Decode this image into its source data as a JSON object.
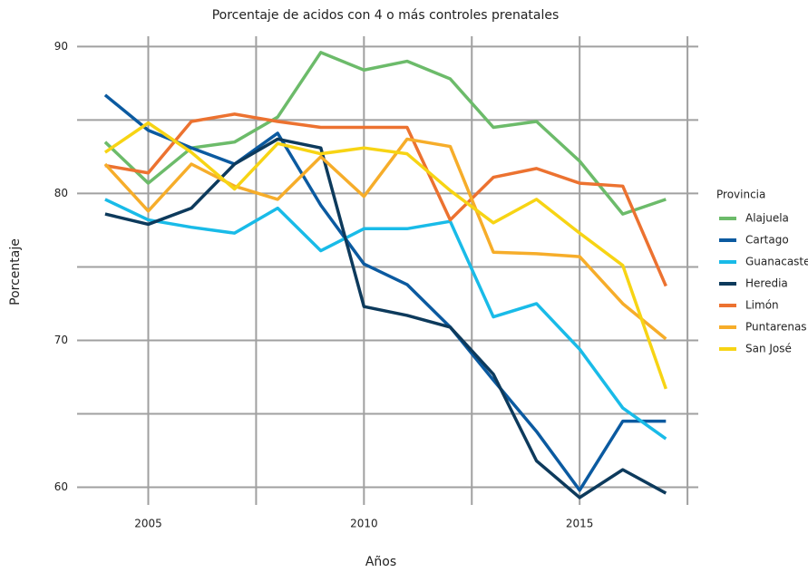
{
  "chart_data": {
    "type": "line",
    "title": "Porcentaje de acidos con 4 o más controles prenatales",
    "x_label": "Años",
    "y_label": "Porcentaje",
    "legend_title": "Provincia",
    "x": [
      2004,
      2005,
      2006,
      2007,
      2008,
      2009,
      2010,
      2011,
      2012,
      2013,
      2014,
      2015,
      2016,
      2017
    ],
    "series": [
      {
        "name": "Alajuela",
        "color": "#6cbb6a",
        "values": [
          83.5,
          80.7,
          83.1,
          83.5,
          85.2,
          89.6,
          88.4,
          89.0,
          87.8,
          84.5,
          84.9,
          82.2,
          78.6,
          79.6
        ]
      },
      {
        "name": "Cartago",
        "color": "#0b5aa0",
        "values": [
          86.7,
          84.3,
          83.1,
          82.0,
          84.1,
          79.2,
          75.2,
          73.8,
          70.9,
          67.3,
          63.8,
          59.8,
          64.5,
          64.5
        ]
      },
      {
        "name": "Guanacaste",
        "color": "#19bbe8",
        "values": [
          79.6,
          78.2,
          77.7,
          77.3,
          79.0,
          76.1,
          77.6,
          77.6,
          78.1,
          71.6,
          72.5,
          69.4,
          65.4,
          63.3
        ]
      },
      {
        "name": "Heredia",
        "color": "#0d3a5c",
        "values": [
          78.6,
          77.9,
          79.0,
          82.0,
          83.7,
          83.1,
          72.3,
          71.7,
          70.9,
          67.7,
          61.8,
          59.3,
          61.2,
          59.6
        ]
      },
      {
        "name": "Limón",
        "color": "#ec7230",
        "values": [
          81.9,
          81.4,
          84.9,
          85.4,
          84.9,
          84.5,
          84.5,
          84.5,
          78.2,
          81.1,
          81.7,
          80.7,
          80.5,
          73.7
        ]
      },
      {
        "name": "Puntarenas",
        "color": "#f6ad2a",
        "values": [
          82.0,
          78.8,
          82.0,
          80.5,
          79.6,
          82.5,
          79.8,
          83.7,
          83.2,
          76.0,
          75.9,
          75.7,
          72.5,
          70.1
        ]
      },
      {
        "name": "San José",
        "color": "#f7d414",
        "values": [
          82.8,
          84.8,
          82.8,
          80.3,
          83.4,
          82.7,
          83.1,
          82.7,
          80.2,
          78.0,
          79.6,
          77.3,
          75.1,
          66.7
        ]
      }
    ],
    "xlim": [
      2003.35,
      2017.75
    ],
    "ylim": [
      58.8,
      90.7
    ],
    "xticks": [
      2005,
      2010,
      2015
    ],
    "yticks": [
      60,
      70,
      80,
      90
    ],
    "x_minor_ticks": [
      2007.5,
      2012.5,
      2017.5
    ],
    "y_minor_ticks": [
      65,
      75,
      85
    ],
    "grid": true,
    "legend": "right"
  }
}
